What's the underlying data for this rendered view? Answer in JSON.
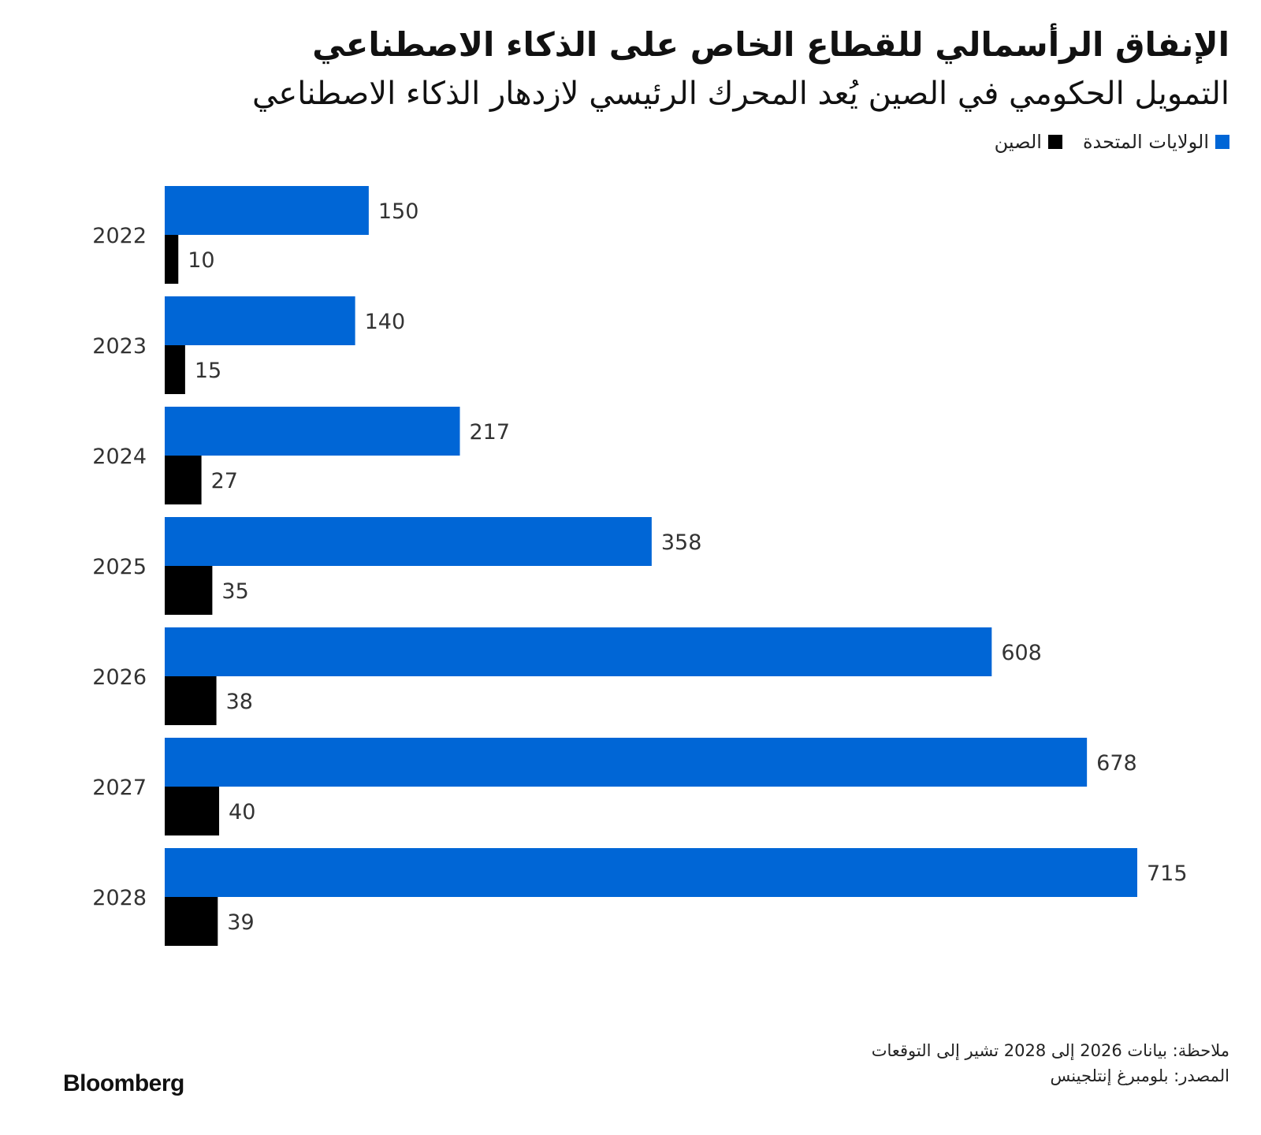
{
  "title": "الإنفاق الرأسمالي للقطاع الخاص على الذكاء الاصطناعي",
  "subtitle": "التمويل الحكومي في الصين يُعد المحرك الرئيسي لازدهار الذكاء الاصطناعي",
  "legend": {
    "us_label": "الولايات المتحدة",
    "china_label": "الصين"
  },
  "colors": {
    "us": "#0066d6",
    "china": "#000000"
  },
  "note": "ملاحظة: بيانات 2026 إلى 2028 تشير إلى التوقعات",
  "source": "المصدر: بلومبرغ إنتلجينس",
  "logo": "Bloomberg",
  "chart_data": {
    "type": "bar",
    "orientation": "horizontal",
    "categories": [
      "2022",
      "2023",
      "2024",
      "2025",
      "2026",
      "2027",
      "2028"
    ],
    "series": [
      {
        "name": "الولايات المتحدة",
        "values": [
          150,
          140,
          217,
          358,
          608,
          678,
          715
        ]
      },
      {
        "name": "الصين",
        "values": [
          10,
          15,
          27,
          35,
          38,
          40,
          39
        ]
      }
    ],
    "xlim": [
      0,
      720
    ],
    "grid": false,
    "legend_position": "top-right",
    "data_labels": true
  }
}
